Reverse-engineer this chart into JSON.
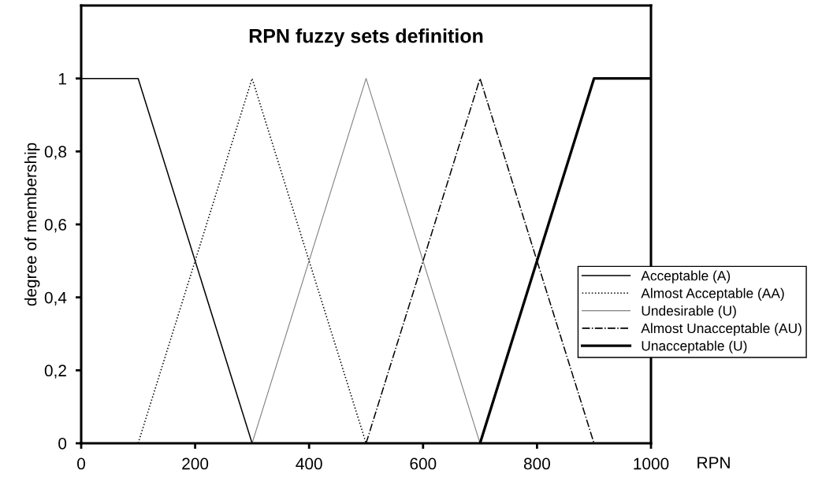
{
  "chart_data": {
    "type": "line",
    "title": "RPN fuzzy sets definition",
    "xlabel": "RPN",
    "ylabel": "degree of membership",
    "xlim": [
      0,
      1000
    ],
    "xticks": [
      0,
      200,
      400,
      600,
      800,
      1000
    ],
    "ylim": [
      0,
      1.2
    ],
    "yticks": [
      {
        "value": 0,
        "label": "0"
      },
      {
        "value": 0.2,
        "label": "0,2"
      },
      {
        "value": 0.4,
        "label": "0,4"
      },
      {
        "value": 0.6,
        "label": "0,6"
      },
      {
        "value": 0.8,
        "label": "0,8"
      },
      {
        "value": 1,
        "label": "1"
      }
    ],
    "grid": false,
    "legend": "right",
    "marker": "none",
    "series": [
      {
        "name": "Acceptable (A)",
        "color": "#000000",
        "line_style": "solid",
        "x": [
          0,
          100,
          300
        ],
        "values": [
          1,
          1,
          0
        ]
      },
      {
        "name": "Almost Acceptable (AA)",
        "color": "#000000",
        "line_style": "dotted",
        "x": [
          100,
          300,
          500
        ],
        "values": [
          0,
          1,
          0
        ]
      },
      {
        "name": "Undesirable (U)",
        "color": "#808080",
        "line_style": "solid",
        "x": [
          300,
          500,
          700
        ],
        "values": [
          0,
          1,
          0
        ]
      },
      {
        "name": "Almost Unacceptable (AU)",
        "color": "#000000",
        "line_style": "dashdot",
        "x": [
          500,
          700,
          900
        ],
        "values": [
          0,
          1,
          0
        ]
      },
      {
        "name": "Unacceptable (U)",
        "color": "#000000",
        "line_style": "solid",
        "x": [
          700,
          900,
          1000
        ],
        "values": [
          0,
          1,
          1
        ]
      }
    ]
  }
}
